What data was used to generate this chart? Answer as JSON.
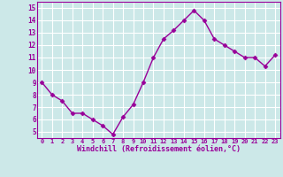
{
  "x": [
    0,
    1,
    2,
    3,
    4,
    5,
    6,
    7,
    8,
    9,
    10,
    11,
    12,
    13,
    14,
    15,
    16,
    17,
    18,
    19,
    20,
    21,
    22,
    23
  ],
  "y": [
    9,
    8,
    7.5,
    6.5,
    6.5,
    6,
    5.5,
    4.8,
    6.2,
    7.2,
    9,
    11,
    12.5,
    13.2,
    14,
    14.8,
    14,
    12.5,
    12,
    11.5,
    11,
    11,
    10.3,
    11.2
  ],
  "line_color": "#990099",
  "marker": "D",
  "marker_size": 2.5,
  "bg_color": "#cce8e8",
  "grid_color": "#ffffff",
  "xlabel": "Windchill (Refroidissement éolien,°C)",
  "xlabel_color": "#990099",
  "tick_color": "#990099",
  "xlim": [
    -0.5,
    23.5
  ],
  "ylim": [
    4.5,
    15.5
  ],
  "yticks": [
    5,
    6,
    7,
    8,
    9,
    10,
    11,
    12,
    13,
    14,
    15
  ],
  "xticks": [
    0,
    1,
    2,
    3,
    4,
    5,
    6,
    7,
    8,
    9,
    10,
    11,
    12,
    13,
    14,
    15,
    16,
    17,
    18,
    19,
    20,
    21,
    22,
    23
  ],
  "line_width": 1.0,
  "figsize": [
    3.2,
    2.0
  ],
  "dpi": 100
}
